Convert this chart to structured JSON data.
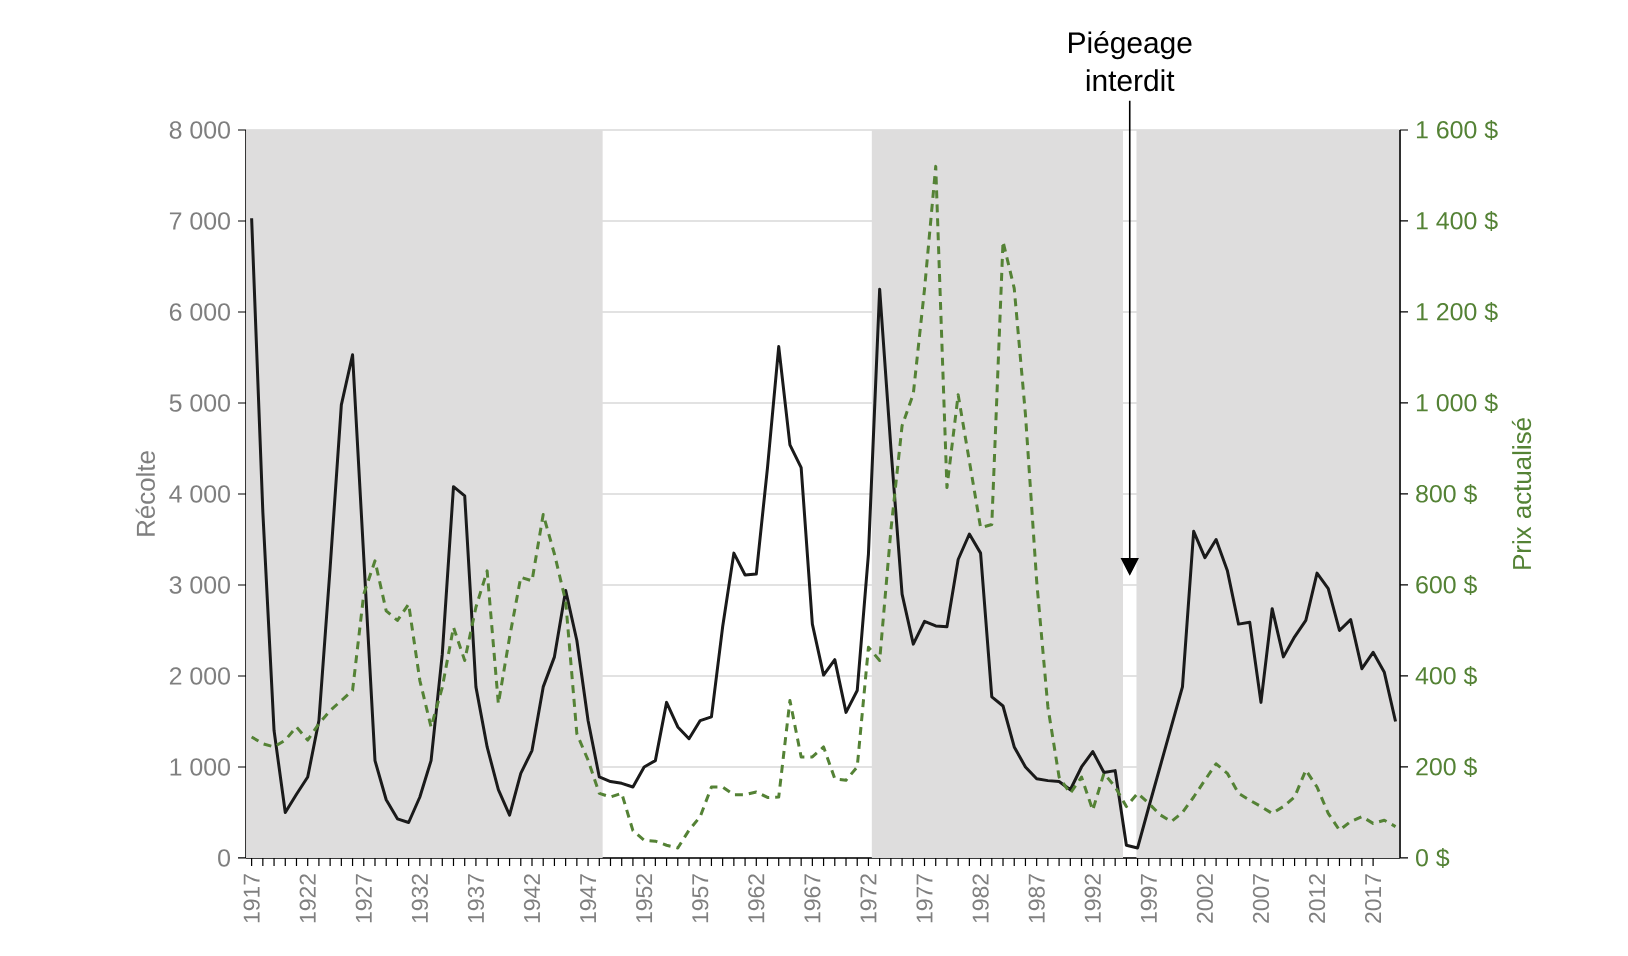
{
  "chart_data": {
    "type": "line",
    "x": [
      1917,
      1918,
      1919,
      1920,
      1921,
      1922,
      1923,
      1924,
      1925,
      1926,
      1927,
      1928,
      1929,
      1930,
      1931,
      1932,
      1933,
      1934,
      1935,
      1936,
      1937,
      1938,
      1939,
      1940,
      1941,
      1942,
      1943,
      1944,
      1945,
      1946,
      1947,
      1948,
      1949,
      1950,
      1951,
      1952,
      1953,
      1954,
      1955,
      1956,
      1957,
      1958,
      1959,
      1960,
      1961,
      1962,
      1963,
      1964,
      1965,
      1966,
      1967,
      1968,
      1969,
      1970,
      1971,
      1972,
      1973,
      1974,
      1975,
      1976,
      1977,
      1978,
      1979,
      1980,
      1981,
      1982,
      1983,
      1984,
      1985,
      1986,
      1987,
      1988,
      1989,
      1990,
      1991,
      1992,
      1993,
      1994,
      1995,
      1996,
      1997,
      1998,
      1999,
      2000,
      2001,
      2002,
      2003,
      2004,
      2005,
      2006,
      2007,
      2008,
      2009,
      2010,
      2011,
      2012,
      2013,
      2014,
      2015,
      2016,
      2017,
      2018,
      2019
    ],
    "series": [
      {
        "color": "#1a1a1a",
        "line_style": "solid",
        "values": [
          7030,
          3800,
          1400,
          500,
          700,
          890,
          1510,
          3190,
          4980,
          5530,
          3300,
          1070,
          640,
          430,
          390,
          670,
          1070,
          2240,
          4080,
          3980,
          1880,
          1220,
          750,
          470,
          930,
          1180,
          1880,
          2210,
          2940,
          2390,
          1510,
          890,
          840,
          820,
          780,
          1000,
          1070,
          1710,
          1440,
          1310,
          1510,
          1550,
          2540,
          3350,
          3110,
          3120,
          4290,
          5620,
          4540,
          4290,
          2570,
          2010,
          2180,
          1600,
          1840,
          3340,
          6250,
          4510,
          2900,
          2350,
          2600,
          2550,
          2540,
          3280,
          3560,
          3350,
          1770,
          1670,
          1220,
          1000,
          870,
          850,
          840,
          750,
          1000,
          1170,
          940,
          960,
          140,
          110,
          560,
          1000,
          1440,
          1880,
          3590,
          3300,
          3500,
          3160,
          2570,
          2590,
          1710,
          2740,
          2210,
          2430,
          2610,
          3130,
          2960,
          2500,
          2620,
          2080,
          2260,
          2040,
          1500
        ]
      },
      {
        "color": "#548235",
        "line_style": "dashed",
        "axis": "y2",
        "values": [
          266,
          251,
          244,
          259,
          288,
          259,
          295,
          324,
          346,
          368,
          580,
          653,
          543,
          522,
          558,
          390,
          288,
          375,
          507,
          434,
          551,
          631,
          339,
          485,
          617,
          609,
          755,
          668,
          565,
          273,
          215,
          142,
          134,
          142,
          60,
          39,
          37,
          28,
          22,
          61,
          91,
          156,
          156,
          139,
          139,
          145,
          133,
          134,
          346,
          222,
          222,
          244,
          174,
          171,
          200,
          463,
          434,
          720,
          950,
          1020,
          1250,
          1520,
          814,
          1018,
          872,
          726,
          733,
          1355,
          1252,
          975,
          609,
          332,
          178,
          142,
          178,
          105,
          186,
          156,
          113,
          142,
          120,
          95,
          80,
          100,
          134,
          171,
          207,
          186,
          142,
          127,
          113,
          98,
          113,
          134,
          193,
          156,
          98,
          61,
          80,
          91,
          76,
          83,
          69
        ]
      }
    ],
    "xlim": [
      1916.5,
      2019.4
    ],
    "xticks": [
      1917,
      1922,
      1927,
      1932,
      1937,
      1942,
      1947,
      1952,
      1957,
      1962,
      1967,
      1972,
      1977,
      1982,
      1987,
      1992,
      1997,
      2002,
      2007,
      2012,
      2017
    ],
    "ylim": [
      0,
      8000
    ],
    "yticks": [
      0,
      {
        "value": 1000,
        "label": "1 000"
      },
      {
        "value": 2000,
        "label": "2 000"
      },
      {
        "value": 3000,
        "label": "3 000"
      },
      {
        "value": 4000,
        "label": "4 000"
      },
      {
        "value": 5000,
        "label": "5 000"
      },
      {
        "value": 6000,
        "label": "6 000"
      },
      {
        "value": 7000,
        "label": "7 000"
      },
      {
        "value": 8000,
        "label": "8 000"
      }
    ],
    "y2lim": [
      0,
      1600
    ],
    "y2ticks": [
      {
        "value": 0,
        "label": "0 $"
      },
      {
        "value": 200,
        "label": "200 $"
      },
      {
        "value": 400,
        "label": "400 $"
      },
      {
        "value": 600,
        "label": "600 $"
      },
      {
        "value": 800,
        "label": "800 $"
      },
      {
        "value": 1000,
        "label": "1 000 $"
      },
      {
        "value": 1200,
        "label": "1 200 $"
      },
      {
        "value": 1400,
        "label": "1 400 $"
      },
      {
        "value": 1600,
        "label": "1 600 $"
      }
    ],
    "ylabel": "Récolte",
    "y2label": "Prix actualisé",
    "grid": "y",
    "bands": [
      {
        "axis": "x",
        "from": 1916.5,
        "to": 1948.3,
        "color": "#dedddd"
      },
      {
        "axis": "x",
        "from": 1972.3,
        "to": 1994.7,
        "color": "#dedddd"
      },
      {
        "axis": "x",
        "from": 1995.9,
        "to": 2019.4,
        "color": "#dedddd"
      }
    ],
    "annotations": [
      {
        "text": "Piégeage interdit",
        "x": 1995.3,
        "y": 3100
      }
    ]
  }
}
